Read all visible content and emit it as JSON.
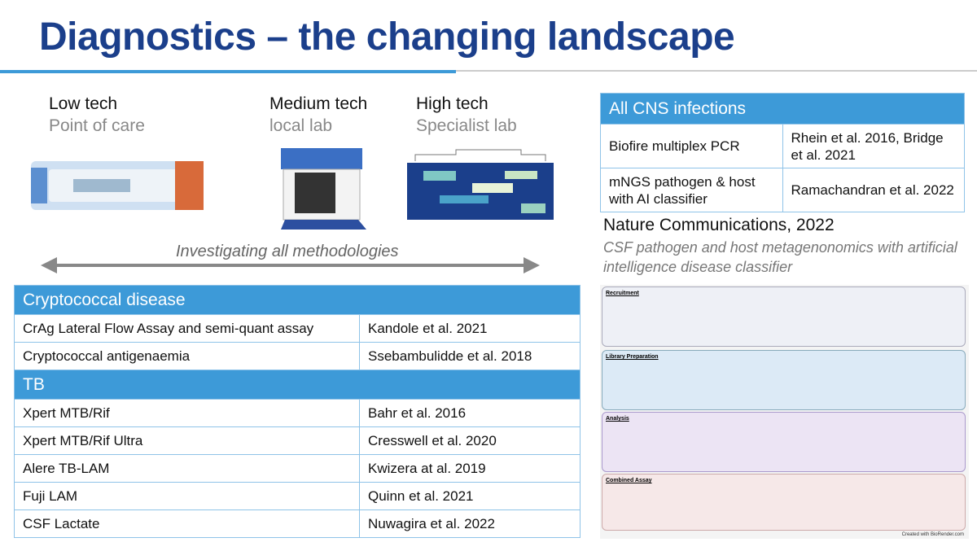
{
  "title": "Diagnostics – the changing landscape",
  "tiers": [
    {
      "level": "Low tech",
      "setting": "Point of care"
    },
    {
      "level": "Medium tech",
      "setting": "local lab"
    },
    {
      "level": "High tech",
      "setting": "Specialist lab"
    }
  ],
  "arrow_label": "Investigating all methodologies",
  "left_table": {
    "sections": [
      {
        "heading": "Cryptococcal disease",
        "rows": [
          [
            "CrAg Lateral Flow Assay and semi-quant assay",
            "Kandole et al. 2021"
          ],
          [
            "Cryptococcal antigenaemia",
            "Ssebambulidde et al. 2018"
          ]
        ]
      },
      {
        "heading": "TB",
        "rows": [
          [
            "Xpert MTB/Rif",
            "Bahr et al.  2016"
          ],
          [
            "Xpert MTB/Rif Ultra",
            "Cresswell et al. 2020"
          ],
          [
            "Alere TB-LAM",
            "Kwizera at al. 2019"
          ],
          [
            "Fuji LAM",
            "Quinn et al. 2021"
          ],
          [
            "CSF Lactate",
            "Nuwagira et al. 2022"
          ]
        ]
      }
    ]
  },
  "right_table": {
    "heading": "All CNS infections",
    "rows": [
      [
        "Biofire multiplex PCR",
        "Rhein et al. 2016, Bridge et al. 2021"
      ],
      [
        "mNGS pathogen & host with AI classifier",
        "Ramachandran et al. 2022"
      ]
    ]
  },
  "paper": {
    "journal": "Nature Communications, 2022",
    "description": "CSF pathogen and host metagenonomics with artificial intelligence disease classifier"
  },
  "figure": {
    "panels": [
      "Recruitment",
      "Library Preparation",
      "Analysis",
      "Combined Assay"
    ],
    "credit": "Created with BioRender.com"
  }
}
